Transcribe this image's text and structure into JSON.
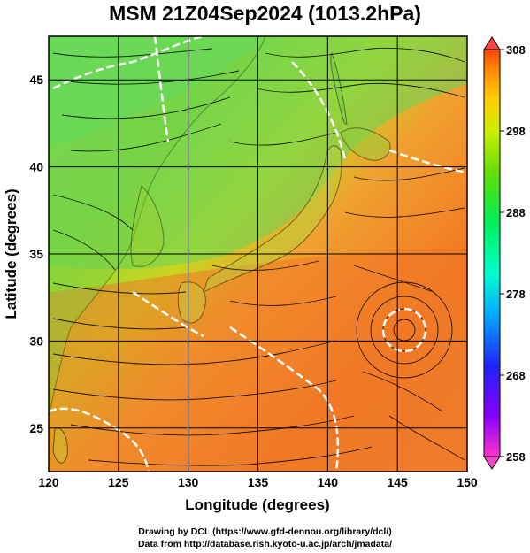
{
  "title": "MSM 21Z04Sep2024 (1013.2hPa)",
  "credits": {
    "line1": "Drawing by DCL (https://www.gfd-dennou.org/library/dcl/)",
    "line2": "Data from http://database.rish.kyoto-u.ac.jp/arch/jmadata/"
  },
  "map": {
    "xlabel": "Longitude (degrees)",
    "ylabel": "Latitude  (degrees)",
    "lon_range": [
      120,
      150
    ],
    "lat_range": [
      22.5,
      47.5
    ],
    "lon_ticks": [
      "120",
      "125",
      "130",
      "135",
      "140",
      "145",
      "150"
    ],
    "lat_ticks": [
      "25",
      "30",
      "35",
      "40",
      "45"
    ],
    "gridlines": true
  },
  "colorbar": {
    "range": [
      258,
      308
    ],
    "ticks": [
      "308",
      "298",
      "288",
      "278",
      "268",
      "258"
    ],
    "colors": [
      "#ff33cc",
      "#8800ff",
      "#2222ff",
      "#00aaff",
      "#00ffcc",
      "#00ee55",
      "#66dd00",
      "#ccee00",
      "#ffcc00",
      "#ff8800",
      "#ff4400"
    ]
  },
  "colors": {
    "land_coast": "#000000",
    "contour": "#ffffff",
    "warm": "#f08a28",
    "cool": "#58d848"
  }
}
